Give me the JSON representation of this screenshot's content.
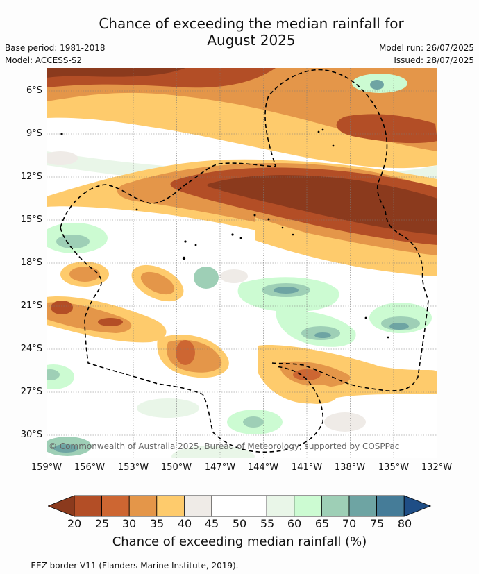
{
  "title_line1": "Chance of exceeding the median rainfall for",
  "title_line2": "August 2025",
  "meta": {
    "base_period": "Base period: 1981-2018",
    "model": "Model: ACCESS-S2",
    "model_run": "Model run: 26/07/2025",
    "issued": "Issued: 28/07/2025"
  },
  "copyright": "© Commonwealth of Australia 2025, Bureau of Meteorology, supported by COSPPac",
  "y_ticks": [
    "6°S",
    "9°S",
    "12°S",
    "15°S",
    "18°S",
    "21°S",
    "24°S",
    "27°S",
    "30°S"
  ],
  "x_ticks": [
    "159°W",
    "156°W",
    "153°W",
    "150°W",
    "147°W",
    "144°W",
    "141°W",
    "138°W",
    "135°W",
    "132°W"
  ],
  "colorbar": {
    "ticks": [
      "20",
      "25",
      "30",
      "35",
      "40",
      "45",
      "50",
      "55",
      "60",
      "65",
      "70",
      "75",
      "80"
    ],
    "label": "Chance of exceeding median rainfall (%)",
    "colors": [
      "#8b3a1d",
      "#b34e26",
      "#cd6632",
      "#e49649",
      "#fecb6c",
      "#efebe7",
      "#ffffff",
      "#ffffff",
      "#e9f6e8",
      "#ccfbd2",
      "#9ecfb6",
      "#6ea4a3",
      "#457c98",
      "#1f4e86"
    ]
  },
  "footnote": "--  --  -- EEZ border V11 (Flanders Marine Institute, 2019)."
}
